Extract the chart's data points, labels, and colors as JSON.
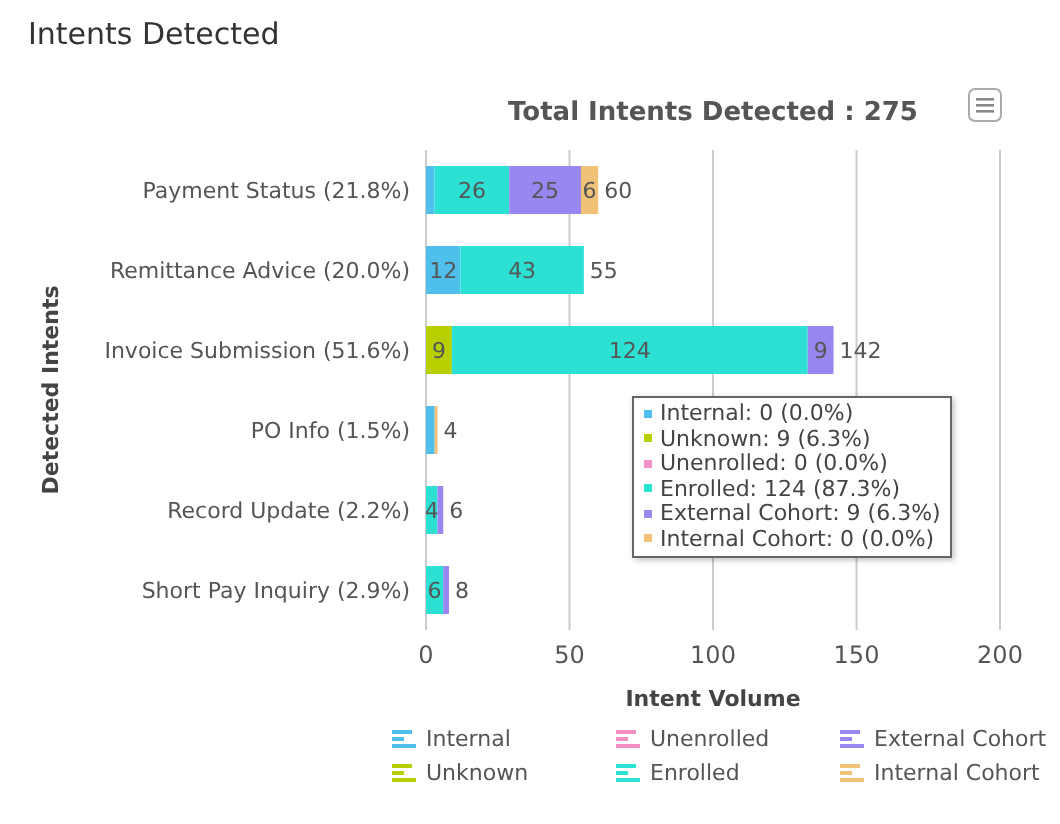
{
  "chart_data": {
    "type": "bar",
    "orientation": "horizontal",
    "stacked": true,
    "title": "Intents Detected",
    "subtitle": "Total Intents Detected : 275",
    "xlabel": "Intent Volume",
    "ylabel": "Detected Intents",
    "categories": [
      "Payment Status (21.8%)",
      "Remittance Advice (20.0%)",
      "Invoice Submission (51.6%)",
      "PO Info (1.5%)",
      "Record Update (2.2%)",
      "Short Pay Inquiry (2.9%)"
    ],
    "series": [
      {
        "name": "Internal",
        "color": "#4fc0eb",
        "values": [
          3,
          12,
          0,
          3,
          0,
          0
        ],
        "value_labels": [
          null,
          "12",
          null,
          null,
          null,
          null
        ]
      },
      {
        "name": "Unknown",
        "color": "#b8d000",
        "values": [
          0,
          0,
          9,
          0,
          0,
          0
        ],
        "value_labels": [
          null,
          null,
          "9",
          null,
          null,
          null
        ]
      },
      {
        "name": "Unenrolled",
        "color": "#f48fc2",
        "values": [
          0,
          0,
          0,
          0,
          0,
          0
        ],
        "value_labels": [
          null,
          null,
          null,
          null,
          null,
          null
        ]
      },
      {
        "name": "Enrolled",
        "color": "#2de0d4",
        "values": [
          26,
          43,
          124,
          0,
          4,
          6
        ],
        "value_labels": [
          "26",
          "43",
          "124",
          null,
          "4",
          "6"
        ]
      },
      {
        "name": "External Cohort",
        "color": "#9a86f0",
        "values": [
          25,
          0,
          9,
          0,
          2,
          2
        ],
        "value_labels": [
          "25",
          null,
          "9",
          null,
          null,
          null
        ]
      },
      {
        "name": "Internal Cohort",
        "color": "#f0c278",
        "values": [
          6,
          0,
          0,
          1,
          0,
          0
        ],
        "value_labels": [
          "6",
          null,
          null,
          null,
          null,
          null
        ]
      }
    ],
    "totals": [
      "60",
      "55",
      "142",
      "4",
      "6",
      "8"
    ],
    "xlim": [
      0,
      200
    ],
    "xticks": [
      0,
      50,
      100,
      150,
      200
    ],
    "grid": "x",
    "legend": "bottom",
    "annotations": [
      "Internal: 0 (0.0%)",
      "Unknown: 9 (6.3%)",
      "Unenrolled: 0 (0.0%)",
      "Enrolled: 124 (87.3%)",
      "External Cohort: 9 (6.3%)",
      "Internal Cohort: 0 (0.0%)"
    ]
  }
}
